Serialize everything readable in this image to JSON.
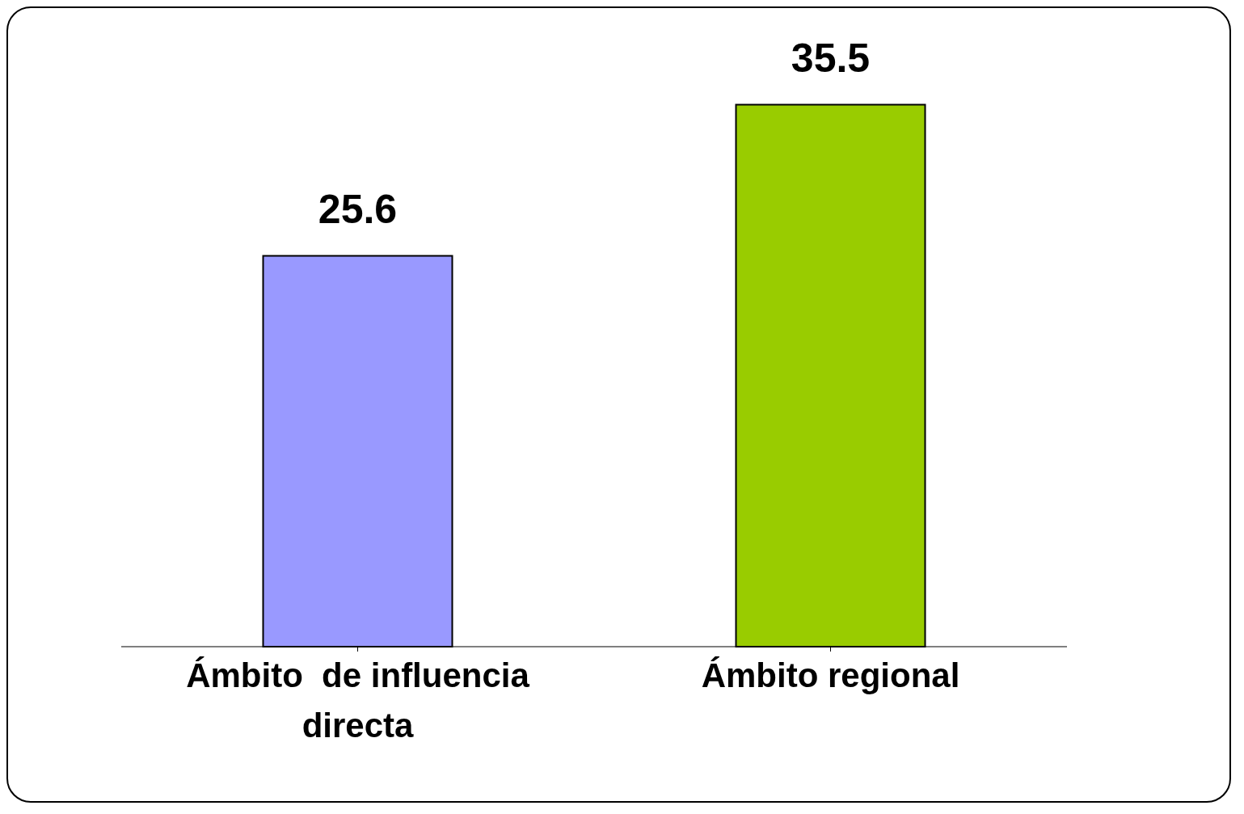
{
  "chart_data": {
    "type": "bar",
    "categories": [
      "Ámbito  de influencia directa",
      "Ámbito regional"
    ],
    "values": [
      25.6,
      35.5
    ],
    "colors": [
      "#9999ff",
      "#99cc00"
    ],
    "data_labels": true
  }
}
